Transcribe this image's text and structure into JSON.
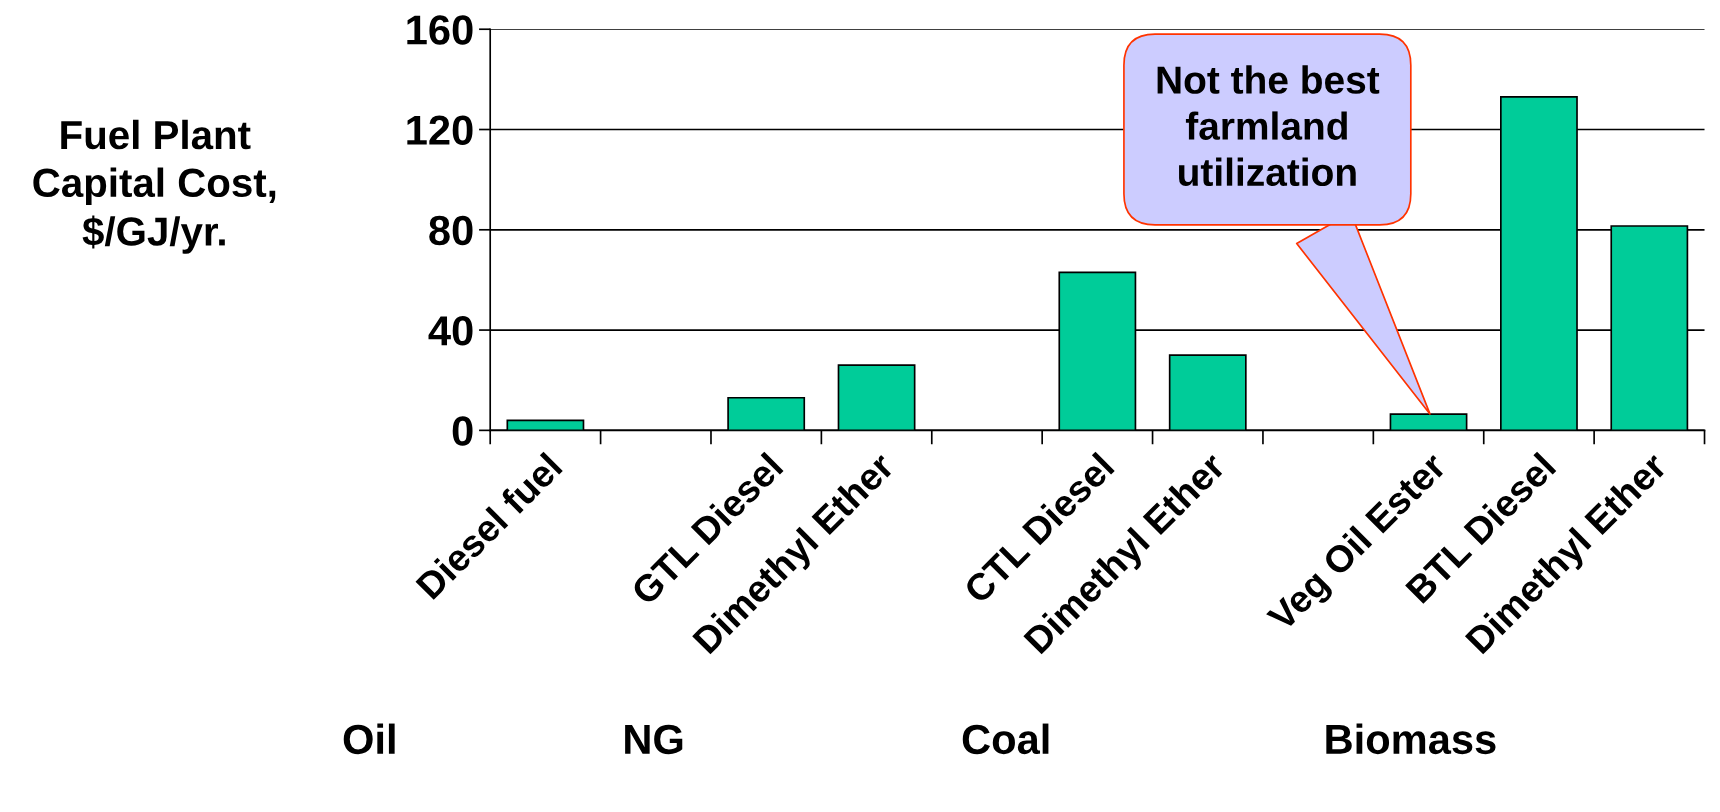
{
  "chart_data": {
    "type": "bar",
    "ylabel": "Fuel Plant\nCapital Cost,\n$/GJ/yr.",
    "categories": [
      "Diesel fuel",
      null,
      "GTL Diesel",
      "Dimethyl Ether",
      null,
      "CTL Diesel",
      "Dimethyl Ether",
      null,
      "Veg Oil Ester",
      "BTL Diesel",
      "Dimethyl Ether"
    ],
    "values": [
      4,
      null,
      13,
      26,
      null,
      63,
      30,
      null,
      6.5,
      133,
      81.5
    ],
    "color": "#00cc99",
    "ylim": [
      0,
      160
    ],
    "yticks": [
      0,
      40,
      80,
      120,
      160
    ],
    "grid": "y",
    "annotations": [
      "Not the best\nfarmland\nutilization",
      "Oil",
      "NG",
      "Coal",
      "Biomass"
    ]
  }
}
